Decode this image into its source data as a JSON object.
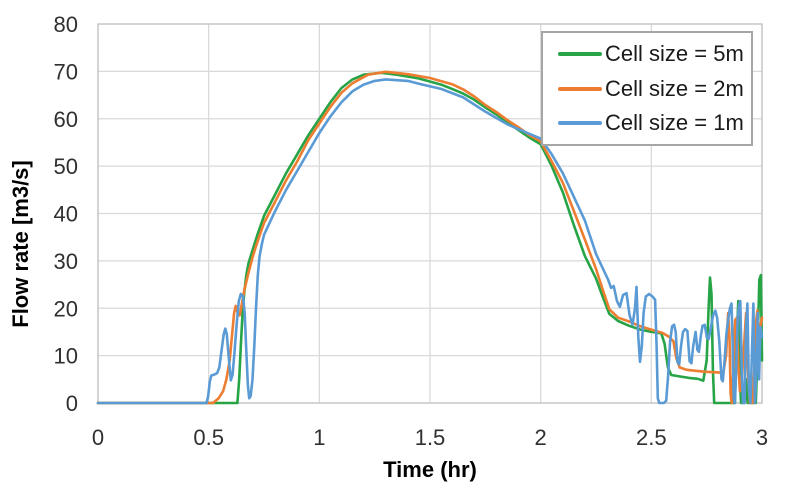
{
  "chart_data": {
    "type": "line",
    "title": "",
    "xlabel": "Time (hr)",
    "ylabel": "Flow rate [m3/s]",
    "xlim": [
      0,
      3
    ],
    "ylim": [
      0,
      80
    ],
    "grid": true,
    "legend_position": "top-right",
    "colors": {
      "grid": "#D9D9D9",
      "plot_border": "#C3C3C3",
      "tick_text": "#303030",
      "title_text": "#000000",
      "legend_border": "#A6A6A6",
      "background": "#FFFFFF"
    },
    "xticks": [
      {
        "value": 0,
        "label": "0"
      },
      {
        "value": 0.5,
        "label": "0.5"
      },
      {
        "value": 1,
        "label": "1"
      },
      {
        "value": 1.5,
        "label": "1.5"
      },
      {
        "value": 2,
        "label": "2"
      },
      {
        "value": 2.5,
        "label": "2.5"
      },
      {
        "value": 3,
        "label": "3"
      }
    ],
    "yticks": [
      {
        "value": 0,
        "label": "0"
      },
      {
        "value": 10,
        "label": "10"
      },
      {
        "value": 20,
        "label": "20"
      },
      {
        "value": 30,
        "label": "30"
      },
      {
        "value": 40,
        "label": "40"
      },
      {
        "value": 50,
        "label": "50"
      },
      {
        "value": 60,
        "label": "60"
      },
      {
        "value": 70,
        "label": "70"
      },
      {
        "value": 80,
        "label": "80"
      }
    ],
    "series": [
      {
        "name": "Cell size = 5m",
        "color": "#26A446",
        "points": [
          [
            0,
            0
          ],
          [
            0.25,
            0
          ],
          [
            0.5,
            0
          ],
          [
            0.63,
            0
          ],
          [
            0.638,
            5
          ],
          [
            0.645,
            12
          ],
          [
            0.652,
            18
          ],
          [
            0.66,
            23
          ],
          [
            0.67,
            27
          ],
          [
            0.68,
            29.5
          ],
          [
            0.7,
            32.5
          ],
          [
            0.72,
            35.5
          ],
          [
            0.75,
            39.5
          ],
          [
            0.8,
            44
          ],
          [
            0.85,
            48.5
          ],
          [
            0.9,
            52.5
          ],
          [
            0.95,
            56.5
          ],
          [
            1,
            60
          ],
          [
            1.05,
            63.5
          ],
          [
            1.1,
            66.5
          ],
          [
            1.15,
            68.3
          ],
          [
            1.2,
            69.3
          ],
          [
            1.28,
            69.7
          ],
          [
            1.35,
            69.3
          ],
          [
            1.45,
            68.5
          ],
          [
            1.55,
            67.2
          ],
          [
            1.6,
            66.3
          ],
          [
            1.65,
            65.3
          ],
          [
            1.7,
            64
          ],
          [
            1.75,
            62.4
          ],
          [
            1.8,
            60.9
          ],
          [
            1.85,
            59.2
          ],
          [
            1.9,
            57.6
          ],
          [
            1.95,
            56
          ],
          [
            2,
            54.6
          ],
          [
            2.05,
            50
          ],
          [
            2.1,
            44.5
          ],
          [
            2.15,
            37.5
          ],
          [
            2.2,
            31
          ],
          [
            2.25,
            26.3
          ],
          [
            2.28,
            22.5
          ],
          [
            2.31,
            18.8
          ],
          [
            2.35,
            17.3
          ],
          [
            2.4,
            16.3
          ],
          [
            2.45,
            15.5
          ],
          [
            2.5,
            15
          ],
          [
            2.545,
            14.7
          ],
          [
            2.56,
            12.5
          ],
          [
            2.575,
            7.5
          ],
          [
            2.59,
            5.9
          ],
          [
            2.63,
            5.6
          ],
          [
            2.67,
            5.3
          ],
          [
            2.71,
            5.1
          ],
          [
            2.735,
            4.7
          ],
          [
            2.75,
            9
          ],
          [
            2.758,
            19
          ],
          [
            2.765,
            26.5
          ],
          [
            2.772,
            23
          ],
          [
            2.778,
            7
          ],
          [
            2.784,
            0
          ],
          [
            2.83,
            0
          ],
          [
            2.878,
            0
          ],
          [
            2.886,
            14
          ],
          [
            2.893,
            21.5
          ],
          [
            2.899,
            7
          ],
          [
            2.905,
            0
          ],
          [
            2.921,
            0
          ],
          [
            2.928,
            5
          ],
          [
            2.935,
            0
          ],
          [
            2.955,
            0
          ],
          [
            2.972,
            0
          ],
          [
            2.979,
            10
          ],
          [
            2.988,
            26
          ],
          [
            2.995,
            27
          ],
          [
            3,
            9
          ]
        ]
      },
      {
        "name": "Cell size = 2m",
        "color": "#ED7D31",
        "points": [
          [
            0,
            0
          ],
          [
            0.25,
            0
          ],
          [
            0.52,
            0
          ],
          [
            0.545,
            1
          ],
          [
            0.565,
            2.5
          ],
          [
            0.58,
            5
          ],
          [
            0.595,
            9
          ],
          [
            0.605,
            14
          ],
          [
            0.615,
            19
          ],
          [
            0.622,
            20.5
          ],
          [
            0.631,
            19
          ],
          [
            0.64,
            18.5
          ],
          [
            0.65,
            21
          ],
          [
            0.662,
            24
          ],
          [
            0.68,
            27.5
          ],
          [
            0.7,
            31
          ],
          [
            0.72,
            34
          ],
          [
            0.75,
            38
          ],
          [
            0.8,
            42.5
          ],
          [
            0.85,
            47
          ],
          [
            0.9,
            51
          ],
          [
            0.95,
            55.5
          ],
          [
            1,
            59
          ],
          [
            1.05,
            62.5
          ],
          [
            1.1,
            65.5
          ],
          [
            1.15,
            67.5
          ],
          [
            1.22,
            69.3
          ],
          [
            1.3,
            69.9
          ],
          [
            1.4,
            69.4
          ],
          [
            1.5,
            68.6
          ],
          [
            1.6,
            67.3
          ],
          [
            1.65,
            66.2
          ],
          [
            1.7,
            64.7
          ],
          [
            1.75,
            62.9
          ],
          [
            1.8,
            61.4
          ],
          [
            1.85,
            59.7
          ],
          [
            1.9,
            58.2
          ],
          [
            1.95,
            56.5
          ],
          [
            2,
            55.2
          ],
          [
            2.05,
            51
          ],
          [
            2.1,
            46.5
          ],
          [
            2.15,
            40.5
          ],
          [
            2.2,
            34.5
          ],
          [
            2.25,
            28.3
          ],
          [
            2.28,
            24
          ],
          [
            2.31,
            19.8
          ],
          [
            2.35,
            18
          ],
          [
            2.4,
            17.2
          ],
          [
            2.45,
            16.2
          ],
          [
            2.5,
            15.5
          ],
          [
            2.55,
            14.8
          ],
          [
            2.58,
            14
          ],
          [
            2.6,
            13
          ],
          [
            2.613,
            9.5
          ],
          [
            2.628,
            7.5
          ],
          [
            2.66,
            7
          ],
          [
            2.7,
            6.8
          ],
          [
            2.74,
            6.6
          ],
          [
            2.78,
            6.5
          ],
          [
            2.825,
            6.4
          ],
          [
            2.838,
            10
          ],
          [
            2.847,
            19
          ],
          [
            2.853,
            14
          ],
          [
            2.858,
            2
          ],
          [
            2.863,
            0
          ],
          [
            2.871,
            7
          ],
          [
            2.879,
            17.5
          ],
          [
            2.886,
            18
          ],
          [
            2.893,
            8
          ],
          [
            2.9,
            2.5
          ],
          [
            2.91,
            6
          ],
          [
            2.92,
            13
          ],
          [
            2.928,
            19
          ],
          [
            2.938,
            5
          ],
          [
            2.946,
            0
          ],
          [
            2.957,
            0
          ],
          [
            2.966,
            8
          ],
          [
            2.973,
            17
          ],
          [
            2.979,
            19.5
          ],
          [
            2.986,
            14
          ],
          [
            2.992,
            16
          ],
          [
            3,
            18
          ]
        ]
      },
      {
        "name": "Cell size = 1m",
        "color": "#5B9BD5",
        "points": [
          [
            0,
            0
          ],
          [
            0.25,
            0
          ],
          [
            0.49,
            0
          ],
          [
            0.498,
            1.5
          ],
          [
            0.505,
            4.5
          ],
          [
            0.512,
            5.8
          ],
          [
            0.525,
            6
          ],
          [
            0.538,
            6.3
          ],
          [
            0.548,
            7.5
          ],
          [
            0.558,
            11
          ],
          [
            0.568,
            14.5
          ],
          [
            0.575,
            15.7
          ],
          [
            0.582,
            14.5
          ],
          [
            0.59,
            10
          ],
          [
            0.6,
            4.8
          ],
          [
            0.608,
            6
          ],
          [
            0.617,
            11
          ],
          [
            0.627,
            17
          ],
          [
            0.636,
            21.5
          ],
          [
            0.645,
            23
          ],
          [
            0.655,
            22.5
          ],
          [
            0.663,
            19
          ],
          [
            0.67,
            11
          ],
          [
            0.677,
            4
          ],
          [
            0.683,
            1
          ],
          [
            0.69,
            1.5
          ],
          [
            0.698,
            5
          ],
          [
            0.706,
            12
          ],
          [
            0.714,
            20
          ],
          [
            0.722,
            27
          ],
          [
            0.73,
            31
          ],
          [
            0.74,
            33.5
          ],
          [
            0.75,
            35.5
          ],
          [
            0.8,
            40.5
          ],
          [
            0.85,
            45
          ],
          [
            0.9,
            49
          ],
          [
            0.95,
            53
          ],
          [
            1,
            57
          ],
          [
            1.05,
            60.5
          ],
          [
            1.1,
            63.5
          ],
          [
            1.15,
            65.8
          ],
          [
            1.2,
            67.2
          ],
          [
            1.25,
            68
          ],
          [
            1.3,
            68.3
          ],
          [
            1.4,
            68
          ],
          [
            1.45,
            67.4
          ],
          [
            1.55,
            66.3
          ],
          [
            1.65,
            64.5
          ],
          [
            1.75,
            61.5
          ],
          [
            1.85,
            58.8
          ],
          [
            1.95,
            56.8
          ],
          [
            2,
            55.8
          ],
          [
            2.05,
            52.5
          ],
          [
            2.1,
            48.5
          ],
          [
            2.15,
            43.5
          ],
          [
            2.2,
            38.5
          ],
          [
            2.25,
            31.5
          ],
          [
            2.28,
            28.5
          ],
          [
            2.305,
            26
          ],
          [
            2.318,
            24.3
          ],
          [
            2.33,
            24.7
          ],
          [
            2.345,
            21.5
          ],
          [
            2.358,
            20.3
          ],
          [
            2.372,
            22.8
          ],
          [
            2.388,
            23.2
          ],
          [
            2.402,
            18.5
          ],
          [
            2.415,
            16.5
          ],
          [
            2.426,
            20
          ],
          [
            2.433,
            24.5
          ],
          [
            2.441,
            14
          ],
          [
            2.449,
            8.7
          ],
          [
            2.457,
            12
          ],
          [
            2.465,
            19
          ],
          [
            2.475,
            22.5
          ],
          [
            2.49,
            23
          ],
          [
            2.505,
            22.5
          ],
          [
            2.517,
            21.8
          ],
          [
            2.524,
            12
          ],
          [
            2.529,
            1
          ],
          [
            2.536,
            0
          ],
          [
            2.557,
            0
          ],
          [
            2.567,
            0.5
          ],
          [
            2.576,
            6
          ],
          [
            2.585,
            13
          ],
          [
            2.594,
            16.2
          ],
          [
            2.603,
            16.5
          ],
          [
            2.61,
            15
          ],
          [
            2.618,
            8.6
          ],
          [
            2.626,
            8.2
          ],
          [
            2.634,
            12
          ],
          [
            2.643,
            15
          ],
          [
            2.653,
            15.6
          ],
          [
            2.663,
            15.2
          ],
          [
            2.673,
            8.8
          ],
          [
            2.681,
            8.4
          ],
          [
            2.689,
            12
          ],
          [
            2.7,
            15
          ],
          [
            2.708,
            11.2
          ],
          [
            2.715,
            10.8
          ],
          [
            2.723,
            14
          ],
          [
            2.731,
            16.3
          ],
          [
            2.741,
            16.5
          ],
          [
            2.751,
            13.8
          ],
          [
            2.759,
            13.5
          ],
          [
            2.769,
            16
          ],
          [
            2.779,
            18.5
          ],
          [
            2.789,
            19.5
          ],
          [
            2.797,
            18
          ],
          [
            2.807,
            13
          ],
          [
            2.817,
            5
          ],
          [
            2.823,
            4.6
          ],
          [
            2.831,
            9
          ],
          [
            2.839,
            14.5
          ],
          [
            2.847,
            17.5
          ],
          [
            2.855,
            20
          ],
          [
            2.862,
            21
          ],
          [
            2.867,
            13
          ],
          [
            2.872,
            1
          ],
          [
            2.877,
            0
          ],
          [
            2.884,
            8
          ],
          [
            2.89,
            18
          ],
          [
            2.896,
            20.5
          ],
          [
            2.902,
            21.5
          ],
          [
            2.909,
            6
          ],
          [
            2.914,
            0
          ],
          [
            2.921,
            0
          ],
          [
            2.928,
            16
          ],
          [
            2.934,
            21
          ],
          [
            2.941,
            3
          ],
          [
            2.948,
            0
          ],
          [
            2.955,
            11
          ],
          [
            2.961,
            21
          ],
          [
            2.968,
            0
          ],
          [
            2.975,
            8
          ],
          [
            2.981,
            19
          ],
          [
            2.987,
            5
          ],
          [
            2.993,
            16
          ],
          [
            3,
            14
          ]
        ]
      }
    ]
  }
}
